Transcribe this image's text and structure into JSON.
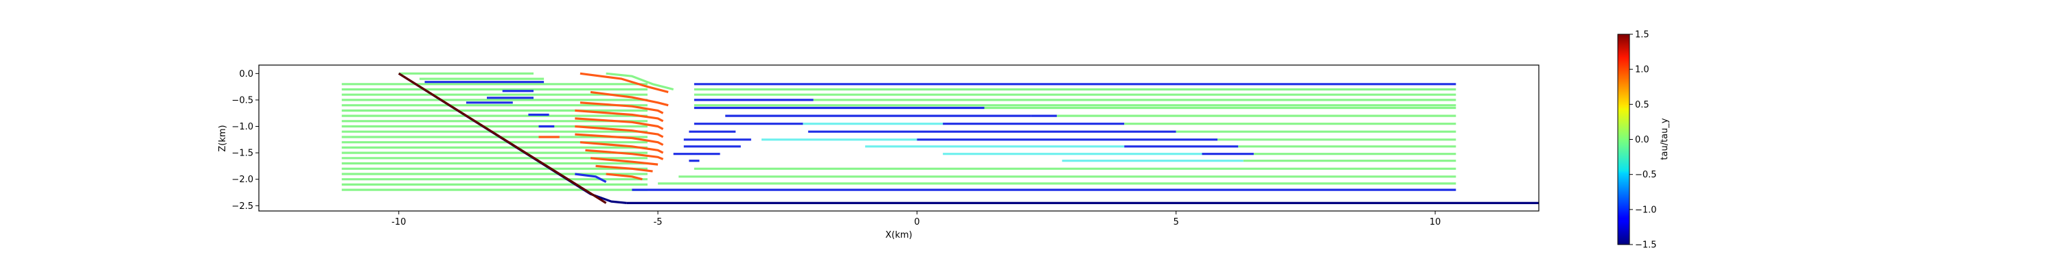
{
  "chart_data": {
    "type": "line",
    "title": "",
    "xlabel": "X(km)",
    "ylabel": "Z(km)",
    "xlim": [
      -12.7,
      12
    ],
    "ylim": [
      -2.6,
      0.16
    ],
    "x_ticks": [
      -10,
      -5,
      0,
      5,
      10
    ],
    "y_ticks": [
      0.0,
      -0.5,
      -1.0,
      -1.5,
      -2.0,
      -2.5
    ],
    "grid": false,
    "colorbar": {
      "label": "tau/tau_y",
      "min": -1.5,
      "max": 1.5,
      "ticks": [
        1.5,
        1.0,
        0.5,
        0.0,
        -0.5,
        -1.0,
        -1.5
      ],
      "colormap": "jet"
    },
    "colors": {
      "green": "#88f58a",
      "orange": "#ff5a16",
      "blue": "#1f2fe6",
      "navy": "#000080",
      "darkred": "#5e0000",
      "cyan": "#6ef0ee",
      "lightcyan": "#9ff3e6"
    },
    "boundary": {
      "dipping_segment": {
        "x": [
          -10,
          -6
        ],
        "z": [
          0.0,
          -2.45
        ],
        "color": "darkred"
      },
      "ramp": {
        "x": [
          -10,
          -6.3,
          -5.9,
          -5.6
        ],
        "z": [
          0.0,
          -2.28,
          -2.42,
          -2.45
        ],
        "color": "navy"
      },
      "base": {
        "x": [
          -5.6,
          12
        ],
        "z": [
          -2.45,
          -2.45
        ],
        "color": "navy"
      }
    },
    "series": [
      {
        "color": "green",
        "x": [
          -11.1,
          -5.2
        ],
        "z": [
          -0.2,
          -0.2
        ]
      },
      {
        "color": "green",
        "x": [
          -11.1,
          -5.2
        ],
        "z": [
          -0.3,
          -0.3
        ]
      },
      {
        "color": "green",
        "x": [
          -11.1,
          -5.2
        ],
        "z": [
          -0.4,
          -0.4
        ]
      },
      {
        "color": "green",
        "x": [
          -11.1,
          -5.2
        ],
        "z": [
          -0.5,
          -0.5
        ]
      },
      {
        "color": "green",
        "x": [
          -11.1,
          -5.2
        ],
        "z": [
          -0.6,
          -0.6
        ]
      },
      {
        "color": "green",
        "x": [
          -11.1,
          -5.2
        ],
        "z": [
          -0.7,
          -0.7
        ]
      },
      {
        "color": "green",
        "x": [
          -11.1,
          -5.2
        ],
        "z": [
          -0.8,
          -0.8
        ]
      },
      {
        "color": "green",
        "x": [
          -11.1,
          -5.2
        ],
        "z": [
          -0.9,
          -0.9
        ]
      },
      {
        "color": "green",
        "x": [
          -11.1,
          -5.2
        ],
        "z": [
          -1.0,
          -1.0
        ]
      },
      {
        "color": "green",
        "x": [
          -11.1,
          -5.2
        ],
        "z": [
          -1.1,
          -1.1
        ]
      },
      {
        "color": "green",
        "x": [
          -11.1,
          -5.2
        ],
        "z": [
          -1.2,
          -1.2
        ]
      },
      {
        "color": "green",
        "x": [
          -11.1,
          -5.2
        ],
        "z": [
          -1.3,
          -1.3
        ]
      },
      {
        "color": "green",
        "x": [
          -11.1,
          -5.2
        ],
        "z": [
          -1.4,
          -1.4
        ]
      },
      {
        "color": "green",
        "x": [
          -11.1,
          -5.2
        ],
        "z": [
          -1.5,
          -1.5
        ]
      },
      {
        "color": "green",
        "x": [
          -11.1,
          -5.2
        ],
        "z": [
          -1.6,
          -1.6
        ]
      },
      {
        "color": "green",
        "x": [
          -11.1,
          -5.2
        ],
        "z": [
          -1.7,
          -1.7
        ]
      },
      {
        "color": "green",
        "x": [
          -11.1,
          -5.2
        ],
        "z": [
          -1.8,
          -1.8
        ]
      },
      {
        "color": "green",
        "x": [
          -11.1,
          -5.2
        ],
        "z": [
          -1.9,
          -1.9
        ]
      },
      {
        "color": "green",
        "x": [
          -11.1,
          -5.2
        ],
        "z": [
          -2.0,
          -2.0
        ]
      },
      {
        "color": "green",
        "x": [
          -11.1,
          -5.2
        ],
        "z": [
          -2.1,
          -2.1
        ]
      },
      {
        "color": "green",
        "x": [
          -11.1,
          -5.2
        ],
        "z": [
          -2.2,
          -2.2
        ]
      },
      {
        "color": "green",
        "x": [
          -10.0,
          -7.4
        ],
        "z": [
          0.0,
          0.0
        ]
      },
      {
        "color": "green",
        "x": [
          -9.6,
          -7.2
        ],
        "z": [
          -0.1,
          -0.1
        ]
      },
      {
        "color": "green",
        "x": [
          -6.0,
          -5.5,
          -5.1,
          -4.7
        ],
        "z": [
          0.0,
          -0.05,
          -0.2,
          -0.3
        ]
      },
      {
        "color": "blue",
        "x": [
          -9.5,
          -7.2
        ],
        "z": [
          -0.16,
          -0.16
        ]
      },
      {
        "color": "blue",
        "x": [
          -8.0,
          -7.4
        ],
        "z": [
          -0.33,
          -0.33
        ]
      },
      {
        "color": "blue",
        "x": [
          -8.3,
          -7.4
        ],
        "z": [
          -0.46,
          -0.46
        ]
      },
      {
        "color": "blue",
        "x": [
          -8.7,
          -7.8
        ],
        "z": [
          -0.55,
          -0.55
        ]
      },
      {
        "color": "blue",
        "x": [
          -7.5,
          -7.1
        ],
        "z": [
          -0.78,
          -0.78
        ]
      },
      {
        "color": "blue",
        "x": [
          -7.3,
          -7.0
        ],
        "z": [
          -1.0,
          -1.0
        ]
      },
      {
        "color": "blue",
        "x": [
          -6.6,
          -6.2,
          -6.0
        ],
        "z": [
          -1.9,
          -1.95,
          -2.05
        ]
      },
      {
        "color": "orange",
        "x": [
          -6.5,
          -5.7,
          -5.2,
          -4.8
        ],
        "z": [
          0.0,
          -0.1,
          -0.25,
          -0.35
        ]
      },
      {
        "color": "orange",
        "x": [
          -6.3,
          -5.5,
          -5.0,
          -4.8
        ],
        "z": [
          -0.35,
          -0.45,
          -0.55,
          -0.6
        ]
      },
      {
        "color": "orange",
        "x": [
          -6.5,
          -5.5,
          -5.0,
          -4.9
        ],
        "z": [
          -0.55,
          -0.62,
          -0.7,
          -0.75
        ]
      },
      {
        "color": "orange",
        "x": [
          -6.6,
          -5.5,
          -5.0,
          -4.9
        ],
        "z": [
          -0.7,
          -0.78,
          -0.85,
          -0.9
        ]
      },
      {
        "color": "orange",
        "x": [
          -6.6,
          -5.5,
          -5.0,
          -4.9
        ],
        "z": [
          -0.85,
          -0.92,
          -1.0,
          -1.05
        ]
      },
      {
        "color": "orange",
        "x": [
          -6.6,
          -5.5,
          -5.0,
          -4.9
        ],
        "z": [
          -1.0,
          -1.08,
          -1.15,
          -1.2
        ]
      },
      {
        "color": "orange",
        "x": [
          -6.6,
          -5.5,
          -5.0,
          -4.9
        ],
        "z": [
          -1.15,
          -1.22,
          -1.3,
          -1.35
        ]
      },
      {
        "color": "orange",
        "x": [
          -6.5,
          -5.5,
          -5.0,
          -4.9
        ],
        "z": [
          -1.3,
          -1.38,
          -1.45,
          -1.5
        ]
      },
      {
        "color": "orange",
        "x": [
          -6.4,
          -5.5,
          -5.0,
          -4.9
        ],
        "z": [
          -1.45,
          -1.52,
          -1.58,
          -1.62
        ]
      },
      {
        "color": "orange",
        "x": [
          -6.3,
          -5.5,
          -5.0
        ],
        "z": [
          -1.6,
          -1.67,
          -1.72
        ]
      },
      {
        "color": "orange",
        "x": [
          -6.2,
          -5.5,
          -5.1
        ],
        "z": [
          -1.75,
          -1.8,
          -1.85
        ]
      },
      {
        "color": "orange",
        "x": [
          -6.0,
          -5.5,
          -5.3
        ],
        "z": [
          -1.9,
          -1.95,
          -2.0
        ]
      },
      {
        "color": "orange",
        "x": [
          -7.3,
          -6.9
        ],
        "z": [
          -1.2,
          -1.2
        ]
      },
      {
        "color": "blue",
        "x": [
          -4.3,
          10.4
        ],
        "z": [
          -0.2,
          -0.2
        ]
      },
      {
        "color": "green",
        "x": [
          -4.3,
          10.4
        ],
        "z": [
          -0.3,
          -0.3
        ]
      },
      {
        "color": "green",
        "x": [
          -4.3,
          10.4
        ],
        "z": [
          -0.4,
          -0.4
        ]
      },
      {
        "color": "blue",
        "x": [
          -4.3,
          -2.0
        ],
        "z": [
          -0.5,
          -0.5
        ]
      },
      {
        "color": "green",
        "x": [
          -2.0,
          10.4
        ],
        "z": [
          -0.5,
          -0.5
        ]
      },
      {
        "color": "green",
        "x": [
          -4.3,
          10.4
        ],
        "z": [
          -0.6,
          -0.6
        ]
      },
      {
        "color": "blue",
        "x": [
          -4.3,
          1.3
        ],
        "z": [
          -0.65,
          -0.65
        ]
      },
      {
        "color": "green",
        "x": [
          1.3,
          10.4
        ],
        "z": [
          -0.65,
          -0.65
        ]
      },
      {
        "color": "blue",
        "x": [
          -3.7,
          2.2
        ],
        "z": [
          -0.8,
          -0.8
        ]
      },
      {
        "color": "blue",
        "x": [
          2.2,
          2.7
        ],
        "z": [
          -0.8,
          -0.8
        ]
      },
      {
        "color": "green",
        "x": [
          2.7,
          10.4
        ],
        "z": [
          -0.8,
          -0.8
        ]
      },
      {
        "color": "blue",
        "x": [
          -4.3,
          -2.2
        ],
        "z": [
          -0.95,
          -0.95
        ]
      },
      {
        "color": "cyan",
        "x": [
          -2.2,
          0.5
        ],
        "z": [
          -0.95,
          -0.95
        ]
      },
      {
        "color": "blue",
        "x": [
          0.5,
          4.0
        ],
        "z": [
          -0.95,
          -0.95
        ]
      },
      {
        "color": "green",
        "x": [
          4.0,
          10.4
        ],
        "z": [
          -0.95,
          -0.95
        ]
      },
      {
        "color": "blue",
        "x": [
          -4.4,
          -3.5
        ],
        "z": [
          -1.1,
          -1.1
        ]
      },
      {
        "color": "blue",
        "x": [
          -2.1,
          5.0
        ],
        "z": [
          -1.1,
          -1.1
        ]
      },
      {
        "color": "green",
        "x": [
          5.0,
          10.4
        ],
        "z": [
          -1.1,
          -1.1
        ]
      },
      {
        "color": "blue",
        "x": [
          -4.5,
          -3.2
        ],
        "z": [
          -1.25,
          -1.25
        ]
      },
      {
        "color": "cyan",
        "x": [
          -3.0,
          0.0
        ],
        "z": [
          -1.25,
          -1.25
        ]
      },
      {
        "color": "blue",
        "x": [
          0.0,
          5.8
        ],
        "z": [
          -1.25,
          -1.25
        ]
      },
      {
        "color": "green",
        "x": [
          5.8,
          10.4
        ],
        "z": [
          -1.25,
          -1.25
        ]
      },
      {
        "color": "blue",
        "x": [
          -4.5,
          -3.4
        ],
        "z": [
          -1.38,
          -1.38
        ]
      },
      {
        "color": "cyan",
        "x": [
          -1.0,
          4.0
        ],
        "z": [
          -1.38,
          -1.38
        ]
      },
      {
        "color": "blue",
        "x": [
          4.0,
          6.2
        ],
        "z": [
          -1.38,
          -1.38
        ]
      },
      {
        "color": "green",
        "x": [
          6.2,
          10.4
        ],
        "z": [
          -1.38,
          -1.38
        ]
      },
      {
        "color": "blue",
        "x": [
          -4.7,
          -3.8
        ],
        "z": [
          -1.52,
          -1.52
        ]
      },
      {
        "color": "cyan",
        "x": [
          0.5,
          5.5
        ],
        "z": [
          -1.52,
          -1.52
        ]
      },
      {
        "color": "blue",
        "x": [
          5.5,
          6.5
        ],
        "z": [
          -1.52,
          -1.52
        ]
      },
      {
        "color": "green",
        "x": [
          6.5,
          10.4
        ],
        "z": [
          -1.52,
          -1.52
        ]
      },
      {
        "color": "blue",
        "x": [
          -4.4,
          -4.2
        ],
        "z": [
          -1.65,
          -1.65
        ]
      },
      {
        "color": "cyan",
        "x": [
          2.8,
          6.3
        ],
        "z": [
          -1.65,
          -1.65
        ]
      },
      {
        "color": "green",
        "x": [
          6.3,
          10.4
        ],
        "z": [
          -1.65,
          -1.65
        ]
      },
      {
        "color": "green",
        "x": [
          -4.3,
          10.4
        ],
        "z": [
          -1.8,
          -1.8
        ]
      },
      {
        "color": "green",
        "x": [
          -4.6,
          10.4
        ],
        "z": [
          -1.95,
          -1.95
        ]
      },
      {
        "color": "green",
        "x": [
          -5.0,
          10.4
        ],
        "z": [
          -2.08,
          -2.08
        ]
      },
      {
        "color": "blue",
        "x": [
          -5.5,
          10.4
        ],
        "z": [
          -2.2,
          -2.2
        ]
      }
    ]
  }
}
